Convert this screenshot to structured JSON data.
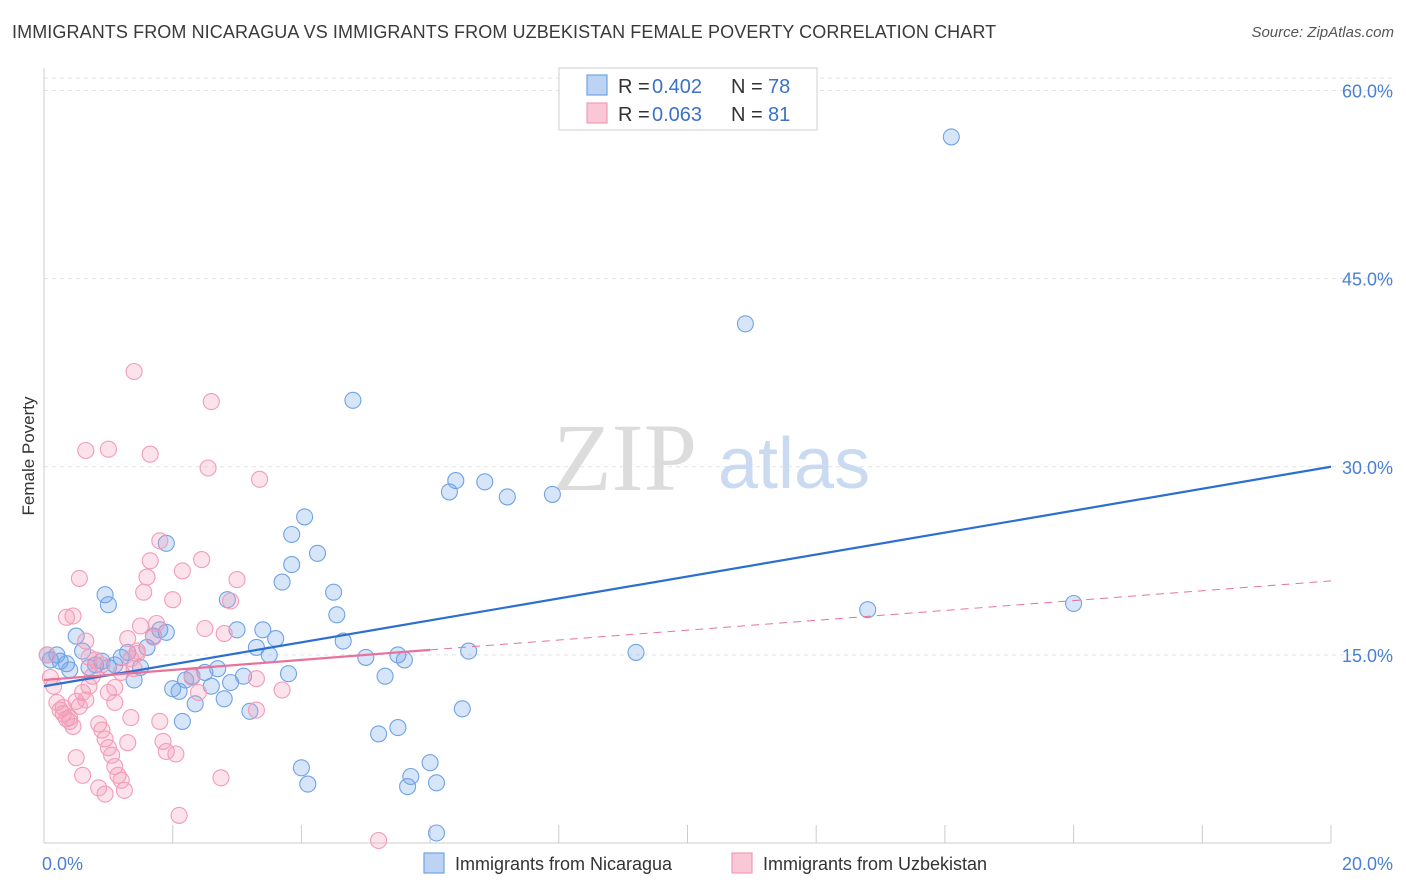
{
  "header": {
    "title": "IMMIGRANTS FROM NICARAGUA VS IMMIGRANTS FROM UZBEKISTAN FEMALE POVERTY CORRELATION CHART",
    "source": "Source: ZipAtlas.com"
  },
  "watermark": {
    "zip": "ZIP",
    "atlas": "atlas"
  },
  "chart_data": {
    "type": "scatter",
    "title": "IMMIGRANTS FROM NICARAGUA VS IMMIGRANTS FROM UZBEKISTAN FEMALE POVERTY CORRELATION CHART",
    "xlabel": "",
    "ylabel": "Female Poverty",
    "xlim": [
      0,
      20
    ],
    "ylim": [
      0,
      61
    ],
    "x_tick_labels": {
      "min": "0.0%",
      "max": "20.0%"
    },
    "y_ticks": [
      {
        "value": 15,
        "label": "15.0%"
      },
      {
        "value": 30,
        "label": "30.0%"
      },
      {
        "value": 45,
        "label": "45.0%"
      },
      {
        "value": 60,
        "label": "60.0%"
      }
    ],
    "grid": true,
    "legend": {
      "position": "top-center",
      "entries": [
        {
          "r_label": "R =",
          "r_value": "0.402",
          "n_label": "N =",
          "n_value": "78"
        },
        {
          "r_label": "R =",
          "r_value": "0.063",
          "n_label": "N =",
          "n_value": "81"
        }
      ]
    },
    "series": [
      {
        "name": "Immigrants from Nicaragua",
        "color": "#6fa3e6",
        "line_color": "#2c6fd0",
        "trend": {
          "x": [
            0,
            20
          ],
          "y": [
            12.5,
            30.0
          ],
          "style": "solid"
        },
        "points": [
          [
            0.05,
            15.0
          ],
          [
            0.1,
            14.6
          ],
          [
            0.2,
            15.0
          ],
          [
            0.25,
            14.5
          ],
          [
            0.35,
            14.3
          ],
          [
            0.4,
            13.8
          ],
          [
            0.5,
            16.5
          ],
          [
            0.6,
            15.3
          ],
          [
            0.7,
            14.0
          ],
          [
            0.8,
            14.2
          ],
          [
            0.9,
            14.5
          ],
          [
            1.0,
            14.0
          ],
          [
            1.1,
            14.2
          ],
          [
            1.2,
            14.8
          ],
          [
            1.3,
            15.2
          ],
          [
            1.4,
            13.0
          ],
          [
            1.5,
            14.0
          ],
          [
            1.6,
            15.6
          ],
          [
            1.7,
            16.5
          ],
          [
            1.8,
            17.0
          ],
          [
            1.9,
            16.8
          ],
          [
            2.0,
            12.3
          ],
          [
            2.1,
            12.1
          ],
          [
            2.2,
            13.0
          ],
          [
            2.3,
            13.3
          ],
          [
            2.5,
            13.6
          ],
          [
            2.6,
            12.5
          ],
          [
            2.7,
            13.9
          ],
          [
            2.8,
            11.5
          ],
          [
            2.9,
            12.8
          ],
          [
            3.0,
            17.0
          ],
          [
            3.1,
            13.3
          ],
          [
            3.2,
            10.5
          ],
          [
            3.3,
            15.6
          ],
          [
            3.4,
            17.0
          ],
          [
            3.5,
            15.0
          ],
          [
            3.6,
            16.3
          ],
          [
            3.7,
            20.8
          ],
          [
            3.8,
            13.5
          ],
          [
            0.95,
            19.8
          ],
          [
            1.0,
            19.0
          ],
          [
            2.85,
            19.4
          ],
          [
            1.9,
            23.9
          ],
          [
            2.15,
            9.7
          ],
          [
            2.35,
            11.1
          ],
          [
            3.85,
            22.2
          ],
          [
            4.5,
            20.0
          ],
          [
            4.25,
            23.1
          ],
          [
            3.85,
            24.6
          ],
          [
            4.05,
            26.0
          ],
          [
            4.55,
            18.2
          ],
          [
            4.8,
            35.3
          ],
          [
            4.65,
            16.1
          ],
          [
            5.0,
            14.8
          ],
          [
            5.3,
            13.3
          ],
          [
            5.5,
            15.0
          ],
          [
            5.6,
            14.6
          ],
          [
            5.5,
            9.2
          ],
          [
            6.1,
            4.8
          ],
          [
            5.2,
            8.7
          ],
          [
            5.7,
            5.3
          ],
          [
            6.0,
            6.4
          ],
          [
            4.0,
            6.0
          ],
          [
            4.1,
            4.7
          ],
          [
            5.65,
            4.5
          ],
          [
            6.1,
            0.8
          ],
          [
            6.4,
            28.9
          ],
          [
            6.3,
            28.0
          ],
          [
            6.6,
            15.3
          ],
          [
            6.5,
            10.7
          ],
          [
            7.2,
            27.6
          ],
          [
            7.9,
            27.8
          ],
          [
            9.2,
            15.2
          ],
          [
            10.9,
            41.4
          ],
          [
            12.8,
            18.6
          ],
          [
            14.1,
            56.3
          ],
          [
            16.0,
            19.1
          ],
          [
            6.85,
            28.8
          ]
        ]
      },
      {
        "name": "Immigrants from Uzbekistan",
        "color": "#f39bb8",
        "line_color": "#e8739a",
        "trend": {
          "x": [
            0,
            6
          ],
          "y": [
            13.0,
            15.4
          ],
          "style": "solid",
          "extended": {
            "x": [
              6,
              20
            ],
            "y": [
              15.4,
              20.9
            ],
            "style": "dashed"
          }
        },
        "points": [
          [
            0.05,
            15.0
          ],
          [
            0.1,
            13.2
          ],
          [
            0.15,
            12.5
          ],
          [
            0.2,
            11.2
          ],
          [
            0.25,
            10.6
          ],
          [
            0.3,
            10.3
          ],
          [
            0.35,
            9.9
          ],
          [
            0.4,
            10.0
          ],
          [
            0.45,
            9.3
          ],
          [
            0.5,
            11.3
          ],
          [
            0.55,
            10.9
          ],
          [
            0.6,
            12.0
          ],
          [
            0.65,
            11.4
          ],
          [
            0.7,
            12.5
          ],
          [
            0.75,
            13.3
          ],
          [
            0.8,
            14.6
          ],
          [
            0.85,
            9.5
          ],
          [
            0.9,
            9.0
          ],
          [
            0.95,
            8.3
          ],
          [
            1.0,
            7.6
          ],
          [
            1.05,
            7.0
          ],
          [
            1.1,
            6.1
          ],
          [
            1.15,
            5.4
          ],
          [
            1.2,
            5.0
          ],
          [
            1.25,
            4.2
          ],
          [
            1.3,
            8.0
          ],
          [
            1.35,
            10.0
          ],
          [
            1.4,
            13.9
          ],
          [
            1.45,
            15.1
          ],
          [
            1.5,
            17.3
          ],
          [
            1.55,
            20.0
          ],
          [
            1.6,
            21.2
          ],
          [
            1.65,
            22.5
          ],
          [
            1.7,
            16.4
          ],
          [
            1.75,
            17.5
          ],
          [
            1.8,
            9.7
          ],
          [
            1.85,
            8.1
          ],
          [
            1.9,
            7.3
          ],
          [
            1.0,
            31.4
          ],
          [
            0.65,
            31.3
          ],
          [
            1.65,
            31.0
          ],
          [
            1.4,
            37.6
          ],
          [
            2.55,
            29.9
          ],
          [
            2.45,
            22.6
          ],
          [
            2.5,
            17.1
          ],
          [
            2.6,
            35.2
          ],
          [
            2.15,
            21.7
          ],
          [
            2.0,
            19.4
          ],
          [
            0.55,
            21.1
          ],
          [
            0.35,
            18.0
          ],
          [
            0.45,
            18.1
          ],
          [
            0.65,
            16.1
          ],
          [
            0.7,
            14.8
          ],
          [
            0.9,
            14.2
          ],
          [
            1.0,
            12.0
          ],
          [
            1.1,
            11.2
          ],
          [
            0.3,
            10.8
          ],
          [
            0.4,
            9.7
          ],
          [
            0.5,
            6.8
          ],
          [
            0.6,
            5.4
          ],
          [
            0.85,
            4.4
          ],
          [
            0.95,
            3.9
          ],
          [
            1.1,
            12.4
          ],
          [
            1.2,
            13.6
          ],
          [
            1.3,
            16.3
          ],
          [
            1.35,
            14.7
          ],
          [
            1.45,
            15.3
          ],
          [
            2.05,
            7.1
          ],
          [
            2.1,
            2.2
          ],
          [
            2.75,
            5.2
          ],
          [
            2.9,
            19.3
          ],
          [
            2.8,
            16.7
          ],
          [
            3.3,
            13.1
          ],
          [
            3.3,
            10.6
          ],
          [
            3.7,
            12.2
          ],
          [
            3.0,
            21.0
          ],
          [
            2.3,
            13.2
          ],
          [
            2.4,
            12.0
          ],
          [
            1.8,
            24.1
          ],
          [
            5.2,
            0.2
          ],
          [
            3.35,
            29.0
          ]
        ]
      }
    ]
  },
  "bottom_legend": [
    {
      "label": "Immigrants from Nicaragua"
    },
    {
      "label": "Immigrants from Uzbekistan"
    }
  ]
}
